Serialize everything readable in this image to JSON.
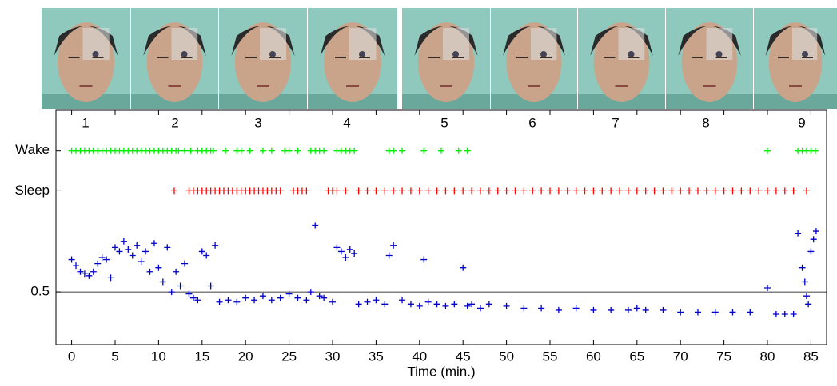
{
  "chart_data": {
    "type": "scatter",
    "panel_labels": [
      "1",
      "2",
      "3",
      "4",
      "5",
      "6",
      "7",
      "8",
      "9"
    ],
    "x_label": "Time (min.)",
    "xlim": [
      -1.8,
      86.8
    ],
    "xticks": [
      0,
      5,
      10,
      15,
      20,
      25,
      30,
      35,
      40,
      45,
      50,
      55,
      60,
      65,
      70,
      75,
      80,
      85
    ],
    "ylim": [
      0.24,
      1.4
    ],
    "yticks": [
      {
        "value": 1.2,
        "label": "Wake"
      },
      {
        "value": 1.0,
        "label": "Sleep"
      },
      0.5
    ],
    "series": [
      {
        "color": "#00ee00",
        "x": [
          0,
          0.5,
          1,
          1.5,
          2,
          2.5,
          3,
          3.5,
          4,
          4.5,
          5,
          5.5,
          6,
          6.5,
          7,
          7.5,
          8,
          8.5,
          9,
          9.5,
          10,
          10.5,
          11,
          11.5,
          12,
          12.3,
          13,
          13.7,
          14.5,
          15,
          15.5,
          16,
          16.3,
          17.7,
          19,
          19.5,
          20.5,
          22,
          23,
          24.5,
          25,
          26,
          27.5,
          28,
          28.5,
          29,
          30.5,
          31,
          31.5,
          32,
          32.5,
          36.5,
          37,
          38,
          40.5,
          42.5,
          44.5,
          45.5,
          80,
          83.5,
          84,
          84.5,
          85,
          85.5
        ],
        "values": [
          1.2,
          1.2,
          1.2,
          1.2,
          1.2,
          1.2,
          1.2,
          1.2,
          1.2,
          1.2,
          1.2,
          1.2,
          1.2,
          1.2,
          1.2,
          1.2,
          1.2,
          1.2,
          1.2,
          1.2,
          1.2,
          1.2,
          1.2,
          1.2,
          1.2,
          1.2,
          1.2,
          1.2,
          1.2,
          1.2,
          1.2,
          1.2,
          1.2,
          1.2,
          1.2,
          1.2,
          1.2,
          1.2,
          1.2,
          1.2,
          1.2,
          1.2,
          1.2,
          1.2,
          1.2,
          1.2,
          1.2,
          1.2,
          1.2,
          1.2,
          1.2,
          1.2,
          1.2,
          1.2,
          1.2,
          1.2,
          1.2,
          1.2,
          1.2,
          1.2,
          1.2,
          1.2,
          1.2,
          1.2
        ]
      },
      {
        "color": "#ff0000",
        "x": [
          11.8,
          13.5,
          14,
          14.5,
          15,
          15.5,
          16,
          16.5,
          17,
          17.5,
          18,
          18.5,
          19,
          19.5,
          20,
          20.5,
          21,
          21.5,
          22,
          22.5,
          23,
          23.5,
          24,
          25.5,
          26,
          26.5,
          27,
          29.5,
          30,
          30.5,
          31.5,
          33,
          34,
          35,
          36,
          37,
          38,
          39,
          40,
          41,
          42,
          43,
          44,
          45,
          46,
          47,
          48,
          49,
          50,
          51,
          52,
          53,
          54,
          55,
          56,
          57,
          58,
          59,
          60,
          61,
          62,
          63,
          64,
          65,
          66,
          67,
          68,
          69,
          70,
          71,
          72,
          73,
          74,
          75,
          76,
          77,
          78,
          79,
          80,
          81,
          82,
          83,
          84.5
        ],
        "values": [
          1.0,
          1.0,
          1.0,
          1.0,
          1.0,
          1.0,
          1.0,
          1.0,
          1.0,
          1.0,
          1.0,
          1.0,
          1.0,
          1.0,
          1.0,
          1.0,
          1.0,
          1.0,
          1.0,
          1.0,
          1.0,
          1.0,
          1.0,
          1.0,
          1.0,
          1.0,
          1.0,
          1.0,
          1.0,
          1.0,
          1.0,
          1.0,
          1.0,
          1.0,
          1.0,
          1.0,
          1.0,
          1.0,
          1.0,
          1.0,
          1.0,
          1.0,
          1.0,
          1.0,
          1.0,
          1.0,
          1.0,
          1.0,
          1.0,
          1.0,
          1.0,
          1.0,
          1.0,
          1.0,
          1.0,
          1.0,
          1.0,
          1.0,
          1.0,
          1.0,
          1.0,
          1.0,
          1.0,
          1.0,
          1.0,
          1.0,
          1.0,
          1.0,
          1.0,
          1.0,
          1.0,
          1.0,
          1.0,
          1.0,
          1.0,
          1.0,
          1.0,
          1.0,
          1.0,
          1.0,
          1.0,
          1.0,
          1.0
        ]
      },
      {
        "color": "#0000cc",
        "x": [
          0,
          0.5,
          1,
          1.5,
          2,
          2.5,
          3,
          3.5,
          4,
          4.5,
          5,
          5.5,
          6,
          6.5,
          7,
          7.5,
          8,
          8.5,
          9,
          9.5,
          10,
          10.5,
          11,
          11.5,
          12,
          12.5,
          13,
          13.5,
          14,
          14.5,
          15,
          15.5,
          16,
          16.5,
          17,
          18,
          19,
          20,
          21,
          22,
          23,
          24,
          25,
          26,
          27,
          27.5,
          28,
          28.5,
          29,
          30,
          30.5,
          31,
          31.5,
          32,
          32.5,
          33,
          34,
          35,
          36,
          36.5,
          37,
          38,
          39,
          40,
          40.5,
          41,
          42,
          43,
          44,
          45,
          45.5,
          46,
          47,
          48,
          50,
          52,
          54,
          56,
          58,
          60,
          62,
          64,
          65,
          66,
          68,
          70,
          72,
          74,
          76,
          78,
          80,
          81,
          82,
          83,
          83.5,
          84,
          84.3,
          84.5,
          84.7,
          85,
          85.3,
          85.6
        ],
        "values": [
          0.66,
          0.63,
          0.6,
          0.59,
          0.58,
          0.6,
          0.64,
          0.67,
          0.66,
          0.57,
          0.72,
          0.7,
          0.75,
          0.71,
          0.68,
          0.73,
          0.65,
          0.7,
          0.6,
          0.74,
          0.62,
          0.55,
          0.72,
          0.5,
          0.6,
          0.53,
          0.64,
          0.49,
          0.47,
          0.46,
          0.7,
          0.68,
          0.53,
          0.73,
          0.45,
          0.46,
          0.45,
          0.47,
          0.46,
          0.48,
          0.46,
          0.47,
          0.49,
          0.47,
          0.46,
          0.5,
          0.83,
          0.48,
          0.47,
          0.45,
          0.72,
          0.7,
          0.67,
          0.71,
          0.69,
          0.44,
          0.45,
          0.46,
          0.44,
          0.68,
          0.73,
          0.46,
          0.44,
          0.43,
          0.66,
          0.45,
          0.44,
          0.43,
          0.44,
          0.62,
          0.43,
          0.44,
          0.42,
          0.44,
          0.43,
          0.42,
          0.42,
          0.41,
          0.42,
          0.41,
          0.41,
          0.41,
          0.42,
          0.41,
          0.41,
          0.4,
          0.4,
          0.4,
          0.4,
          0.4,
          0.52,
          0.39,
          0.39,
          0.39,
          0.79,
          0.62,
          0.55,
          0.48,
          0.44,
          0.7,
          0.76,
          0.8
        ]
      }
    ]
  }
}
